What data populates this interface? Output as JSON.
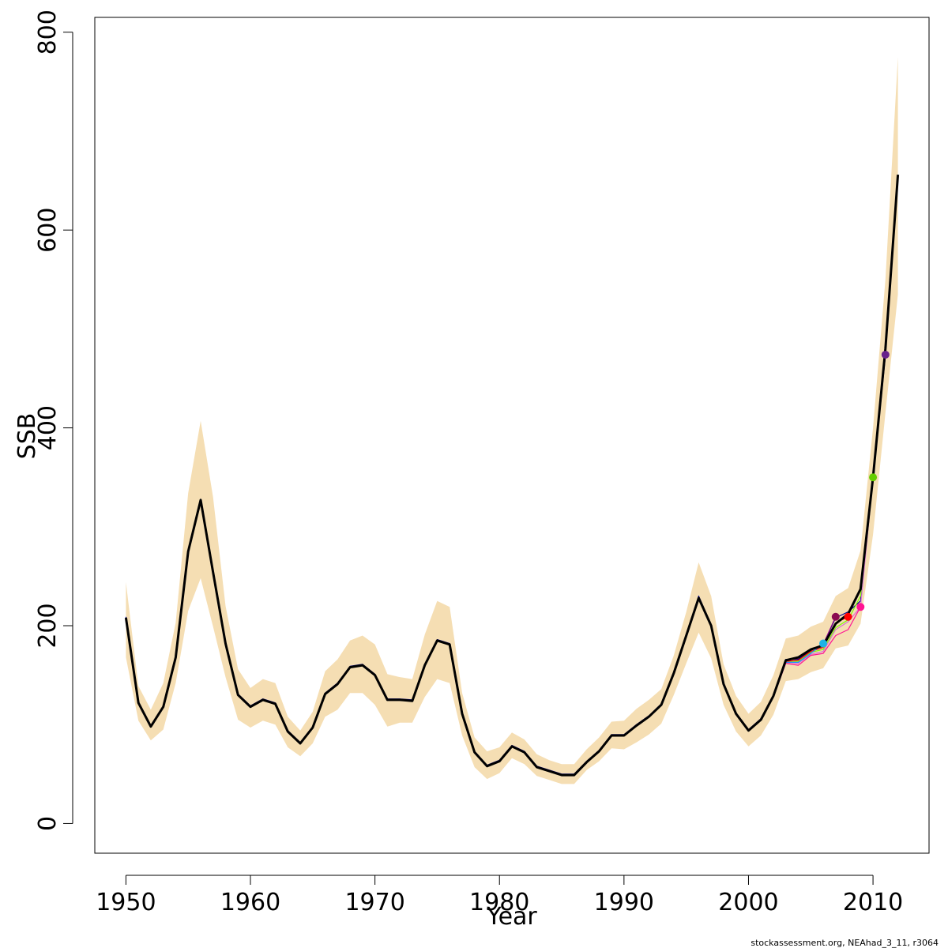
{
  "chart_data": {
    "type": "line",
    "xlabel": "Year",
    "ylabel": "SSB",
    "xlim": [
      1947.5,
      2014.5
    ],
    "ylim": [
      -30,
      815
    ],
    "x_ticks": [
      1950,
      1960,
      1970,
      1980,
      1990,
      2000,
      2010
    ],
    "y_ticks": [
      0,
      200,
      400,
      600,
      800
    ],
    "credit": "stockassessment.org, NEAhad_3_11, r3064",
    "colors": {
      "band": "#f5deb3",
      "main": "#000000"
    },
    "confidence_band": {
      "x": [
        1950,
        1951,
        1952,
        1953,
        1954,
        1955,
        1956,
        1957,
        1958,
        1959,
        1960,
        1961,
        1962,
        1963,
        1964,
        1965,
        1966,
        1967,
        1968,
        1969,
        1970,
        1971,
        1972,
        1973,
        1974,
        1975,
        1976,
        1977,
        1978,
        1979,
        1980,
        1981,
        1982,
        1983,
        1984,
        1985,
        1986,
        1987,
        1988,
        1989,
        1990,
        1991,
        1992,
        1993,
        1994,
        1995,
        1996,
        1997,
        1998,
        1999,
        2000,
        2001,
        2002,
        2003,
        2004,
        2005,
        2006,
        2007,
        2008,
        2009,
        2010,
        2011,
        2012
      ],
      "upper": [
        244,
        139,
        115,
        142,
        203,
        334,
        407,
        330,
        220,
        156,
        137,
        146,
        142,
        108,
        94,
        113,
        154,
        166,
        185,
        190,
        181,
        151,
        148,
        146,
        191,
        225,
        219,
        132,
        87,
        73,
        77,
        92,
        85,
        70,
        64,
        60,
        60,
        75,
        87,
        103,
        104,
        116,
        125,
        136,
        170,
        214,
        264,
        230,
        161,
        129,
        111,
        123,
        150,
        187,
        190,
        199,
        204,
        230,
        238,
        276,
        400,
        550,
        775
      ]
    },
    "confidence_band_lower": [
      168,
      104,
      84,
      95,
      142,
      215,
      248,
      199,
      148,
      105,
      97,
      104,
      100,
      77,
      68,
      81,
      108,
      115,
      132,
      132,
      120,
      98,
      102,
      102,
      128,
      146,
      142,
      89,
      57,
      45,
      51,
      66,
      60,
      48,
      44,
      40,
      40,
      54,
      63,
      76,
      75,
      82,
      90,
      101,
      130,
      162,
      193,
      167,
      120,
      93,
      78,
      89,
      110,
      144,
      146,
      153,
      157,
      177,
      180,
      202,
      292,
      415,
      535
    ],
    "series": [
      {
        "name": "",
        "color": "#000000",
        "x": [
          1950,
          1951,
          1952,
          1953,
          1954,
          1955,
          1956,
          1957,
          1958,
          1959,
          1960,
          1961,
          1962,
          1963,
          1964,
          1965,
          1966,
          1967,
          1968,
          1969,
          1970,
          1971,
          1972,
          1973,
          1974,
          1975,
          1976,
          1977,
          1978,
          1979,
          1980,
          1981,
          1982,
          1983,
          1984,
          1985,
          1986,
          1987,
          1988,
          1989,
          1990,
          1991,
          1992,
          1993,
          1994,
          1995,
          1996,
          1997,
          1998,
          1999,
          2000,
          2001,
          2002,
          2003,
          2004,
          2005,
          2006,
          2007,
          2008,
          2009,
          2010,
          2011,
          2012
        ],
        "values": [
          208,
          122,
          98,
          118,
          168,
          275,
          327,
          254,
          182,
          130,
          118,
          125,
          121,
          93,
          81,
          97,
          131,
          141,
          158,
          160,
          150,
          125,
          125,
          124,
          160,
          185,
          181,
          111,
          72,
          58,
          63,
          78,
          72,
          57,
          53,
          49,
          49,
          62,
          73,
          89,
          89,
          99,
          108,
          120,
          152,
          190,
          228,
          200,
          141,
          111,
          94,
          105,
          129,
          165,
          168,
          176,
          180,
          202,
          212,
          237,
          350,
          480,
          656
        ]
      },
      {
        "name": "",
        "color": "#00008b",
        "x": [
          1950,
          1951,
          1952,
          1953,
          1954,
          1955,
          1956,
          1957,
          1958,
          1959,
          1960,
          1961,
          1962,
          1963,
          1964,
          1965,
          1966,
          1967,
          1968,
          1969,
          1970,
          1971,
          1972,
          1973,
          1974,
          1975,
          1976,
          1977,
          1978,
          1979,
          1980,
          1981,
          1982,
          1983,
          1984,
          1985,
          1986,
          1987,
          1988,
          1989,
          1990,
          1991,
          1992,
          1993,
          1994,
          1995,
          1996,
          1997,
          1998,
          1999,
          2000,
          2001,
          2002,
          2003,
          2004,
          2005,
          2006,
          2007,
          2008,
          2009,
          2010,
          2011
        ],
        "values": [
          209,
          123,
          99,
          119,
          169,
          276,
          328,
          255,
          183,
          131,
          119,
          126,
          122,
          94,
          82,
          98,
          132,
          142,
          159,
          161,
          151,
          126,
          126,
          125,
          161,
          186,
          182,
          112,
          73,
          59,
          64,
          79,
          73,
          58,
          54,
          50,
          50,
          63,
          74,
          90,
          90,
          100,
          109,
          121,
          153,
          191,
          230,
          201,
          142,
          112,
          95,
          106,
          130,
          166,
          166,
          175,
          181,
          208,
          214,
          225,
          348,
          473
        ]
      },
      {
        "name": "",
        "color": "#da70d6",
        "x": [
          2000,
          2001,
          2002,
          2003,
          2004,
          2005,
          2006,
          2007,
          2008,
          2009,
          2010,
          2011
        ],
        "values": [
          94,
          105,
          128,
          163,
          162,
          171,
          174,
          196,
          204,
          219,
          350,
          474
        ]
      },
      {
        "name": "",
        "color": "#ff1493",
        "x": [
          2000,
          2001,
          2002,
          2003,
          2004,
          2005,
          2006,
          2007,
          2008,
          2009
        ],
        "values": [
          94,
          105,
          128,
          162,
          160,
          170,
          172,
          190,
          196,
          219
        ]
      },
      {
        "name": "",
        "color": "#7cfc00",
        "x": [
          2000,
          2001,
          2002,
          2003,
          2004,
          2005,
          2006,
          2007,
          2008,
          2009,
          2010
        ],
        "values": [
          94,
          105,
          128,
          164,
          164,
          173,
          176,
          198,
          206,
          230,
          350
        ]
      },
      {
        "name": "",
        "color": "#ff0000",
        "x": [
          2000,
          2001,
          2002,
          2003,
          2004,
          2005,
          2006,
          2007,
          2008
        ],
        "values": [
          94,
          105,
          128,
          164,
          165,
          174,
          178,
          203,
          209
        ]
      },
      {
        "name": "",
        "color": "#8b008b",
        "x": [
          2000,
          2001,
          2002,
          2003,
          2004,
          2005,
          2006,
          2007
        ],
        "values": [
          94,
          105,
          129,
          165,
          167,
          176,
          181,
          209
        ]
      },
      {
        "name": "",
        "color": "#1e90ff",
        "x": [
          2000,
          2001,
          2002,
          2003,
          2004,
          2005,
          2006
        ],
        "values": [
          94,
          105,
          128,
          163,
          163,
          172,
          182
        ]
      }
    ],
    "endpoints": [
      {
        "x": 2006,
        "y": 182,
        "color": "#1fb3e6"
      },
      {
        "x": 2007,
        "y": 209,
        "color": "#8b0a50"
      },
      {
        "x": 2008,
        "y": 209,
        "color": "#ff0000"
      },
      {
        "x": 2009,
        "y": 219,
        "color": "#ff1493"
      },
      {
        "x": 2010,
        "y": 350,
        "color": "#66cd00"
      },
      {
        "x": 2011,
        "y": 474,
        "color": "#68228b"
      }
    ]
  }
}
